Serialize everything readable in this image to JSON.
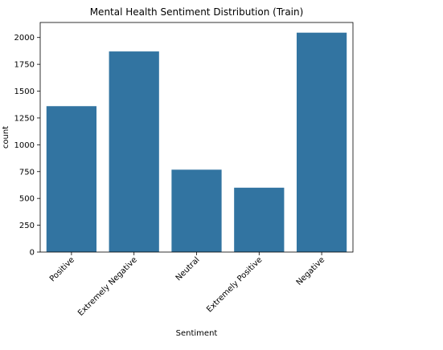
{
  "chart_data": {
    "type": "bar",
    "title": "Mental Health Sentiment Distribution (Train)",
    "xlabel": "Sentiment",
    "ylabel": "count",
    "categories": [
      "Positive",
      "Extremely Negative",
      "Neutral",
      "Extremely Positive",
      "Negative"
    ],
    "values": [
      1360,
      1870,
      768,
      600,
      2045
    ],
    "ylim": [
      0,
      2140
    ],
    "yticks": [
      0,
      250,
      500,
      750,
      1000,
      1250,
      1500,
      1750,
      2000
    ],
    "bar_color": "#3274a1",
    "grid": false,
    "legend": "none"
  }
}
